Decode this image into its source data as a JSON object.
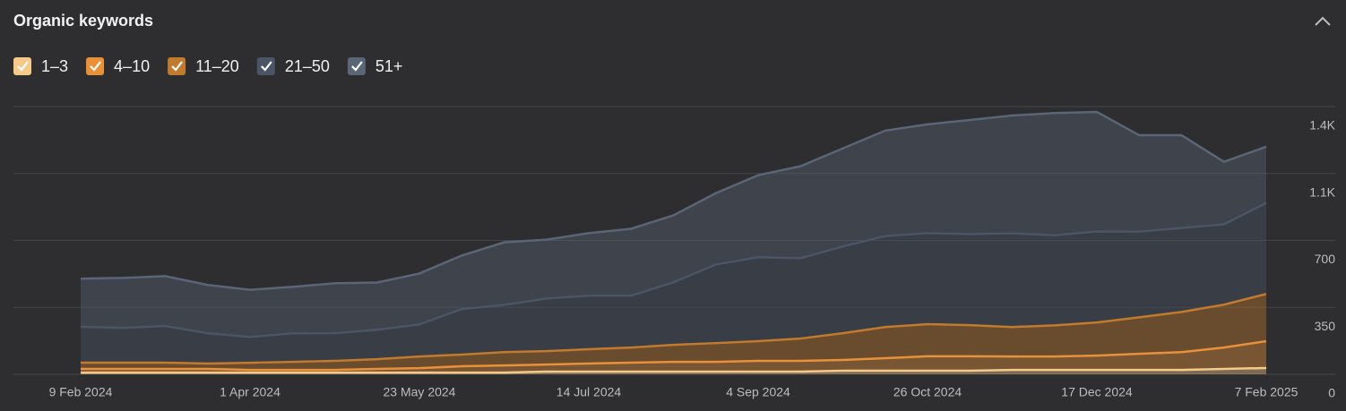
{
  "chart_data": {
    "type": "stacked_area",
    "title": "Organic keywords",
    "x": [
      "9 Feb 2024",
      null,
      null,
      null,
      "1 Apr 2024",
      null,
      null,
      null,
      "23 May 2024",
      null,
      null,
      null,
      "14 Jul 2024",
      null,
      null,
      null,
      "4 Sep 2024",
      null,
      null,
      null,
      "26 Oct 2024",
      null,
      null,
      null,
      "17 Dec 2024",
      null,
      null,
      null,
      "7 Feb 2025"
    ],
    "series": [
      {
        "name": "1–3",
        "color": "#f5c98a",
        "values": [
          9,
          9,
          9,
          9,
          9,
          9,
          9,
          9,
          9,
          9,
          9,
          14,
          14,
          14,
          14,
          14,
          14,
          14,
          19,
          19,
          19,
          19,
          23,
          23,
          23,
          23,
          23,
          28,
          33
        ]
      },
      {
        "name": "4–10",
        "color": "#e8913a",
        "values": [
          19,
          19,
          19,
          19,
          14,
          14,
          14,
          19,
          23,
          33,
          37,
          37,
          42,
          47,
          51,
          51,
          56,
          56,
          56,
          65,
          75,
          75,
          70,
          70,
          75,
          84,
          93,
          112,
          140
        ]
      },
      {
        "name": "11–20",
        "color": "#c27a2e",
        "values": [
          33,
          33,
          33,
          28,
          37,
          42,
          47,
          51,
          61,
          61,
          70,
          70,
          75,
          79,
          89,
          98,
          103,
          117,
          140,
          163,
          168,
          163,
          154,
          163,
          173,
          191,
          210,
          224,
          247
        ]
      },
      {
        "name": "21–50",
        "color": "#4a5566",
        "values": [
          187,
          182,
          191,
          159,
          135,
          149,
          145,
          154,
          168,
          238,
          247,
          275,
          280,
          271,
          327,
          411,
          439,
          420,
          453,
          476,
          476,
          476,
          490,
          471,
          476,
          448,
          439,
          420,
          476
        ]
      },
      {
        "name": "51+",
        "color": "#5a6576",
        "values": [
          252,
          261,
          261,
          252,
          247,
          243,
          261,
          247,
          266,
          280,
          327,
          308,
          327,
          350,
          350,
          373,
          429,
          481,
          513,
          551,
          569,
          597,
          616,
          639,
          625,
          504,
          485,
          327,
          294
        ]
      }
    ],
    "ylim": [
      0,
      1400
    ],
    "yticks": [
      0,
      350,
      700,
      {
        "value": 1050,
        "label": "1.1K"
      },
      {
        "value": 1400,
        "label": "1.4K"
      }
    ],
    "grid": true
  }
}
